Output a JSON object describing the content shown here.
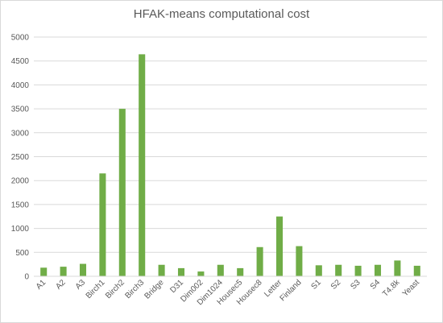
{
  "chart_data": {
    "type": "bar",
    "title": "HFAK-means computational cost",
    "xlabel": "",
    "ylabel": "",
    "categories": [
      "A1",
      "A2",
      "A3",
      "Birch1",
      "Birch2",
      "Birch3",
      "Bridge",
      "D31",
      "Dim002",
      "Dim1024",
      "Housec5",
      "Housec8",
      "Letter",
      "Finland",
      "S1",
      "S2",
      "S3",
      "S4",
      "T4.8k",
      "Yeast"
    ],
    "values": [
      180,
      200,
      260,
      2150,
      3500,
      4640,
      240,
      170,
      100,
      240,
      170,
      610,
      1250,
      630,
      230,
      240,
      220,
      240,
      330,
      220
    ],
    "ylim": [
      0,
      5000
    ],
    "yticks": [
      "0",
      "500",
      "1000",
      "1500",
      "2000",
      "2500",
      "3000",
      "3500",
      "4000",
      "4500",
      "5000"
    ],
    "grid": true,
    "legend": "none",
    "bar_color": "#70ad47",
    "grid_color": "#d9d9d9"
  }
}
